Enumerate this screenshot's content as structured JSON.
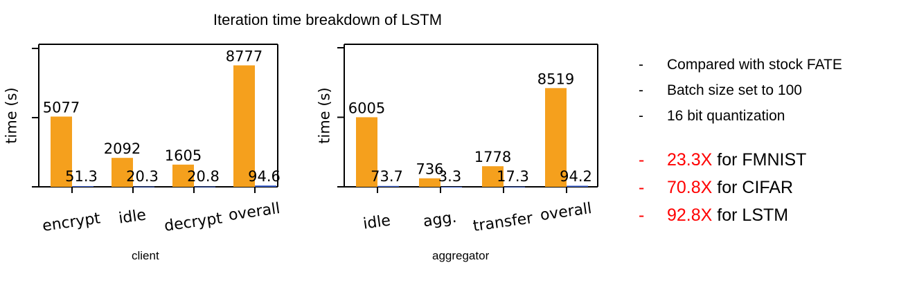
{
  "title": "Iteration time breakdown of LSTM",
  "colors": {
    "bar": "#f5a01d",
    "bar_small": "#3a5fcd",
    "highlight": "#ff0000"
  },
  "chart_data": [
    {
      "type": "bar",
      "xlabel": "client",
      "ylabel": "time (s)",
      "categories": [
        "encrypt",
        "idle",
        "decrypt",
        "overall"
      ],
      "series": [
        {
          "values": [
            5077,
            2092,
            1605,
            8777
          ]
        },
        {
          "values": [
            51.3,
            20.3,
            20.8,
            94.6
          ]
        }
      ],
      "value_labels": [
        [
          "5077",
          "2092",
          "1605",
          "8777"
        ],
        [
          "51.3",
          "20.3",
          "20.8",
          "94.6"
        ]
      ],
      "ylim": [
        0,
        10300
      ],
      "yticks": [
        0,
        5000,
        10000
      ]
    },
    {
      "type": "bar",
      "xlabel": "aggregator",
      "ylabel": "time (s)",
      "categories": [
        "idle",
        "agg.",
        "transfer",
        "overall"
      ],
      "series": [
        {
          "values": [
            6005,
            736,
            1778,
            8519
          ]
        },
        {
          "values": [
            73.7,
            3.3,
            17.3,
            94.2
          ]
        }
      ],
      "value_labels": [
        [
          "6005",
          "736",
          "1778",
          "8519"
        ],
        [
          "73.7",
          "3.3",
          "17.3",
          "94.2"
        ]
      ],
      "ylim": [
        0,
        12300
      ],
      "yticks": [
        0,
        6000,
        12000
      ]
    }
  ],
  "notes": [
    {
      "dash": "-",
      "text": "Compared with stock FATE"
    },
    {
      "dash": "-",
      "text": "Batch size set to 100"
    },
    {
      "dash": "-",
      "text": "16 bit quantization"
    }
  ],
  "speedups": [
    {
      "dash": "-",
      "value": "23.3X",
      "text": " for FMNIST"
    },
    {
      "dash": "-",
      "value": "70.8X",
      "text": " for CIFAR"
    },
    {
      "dash": "-",
      "value": "92.8X",
      "text": " for LSTM"
    }
  ]
}
